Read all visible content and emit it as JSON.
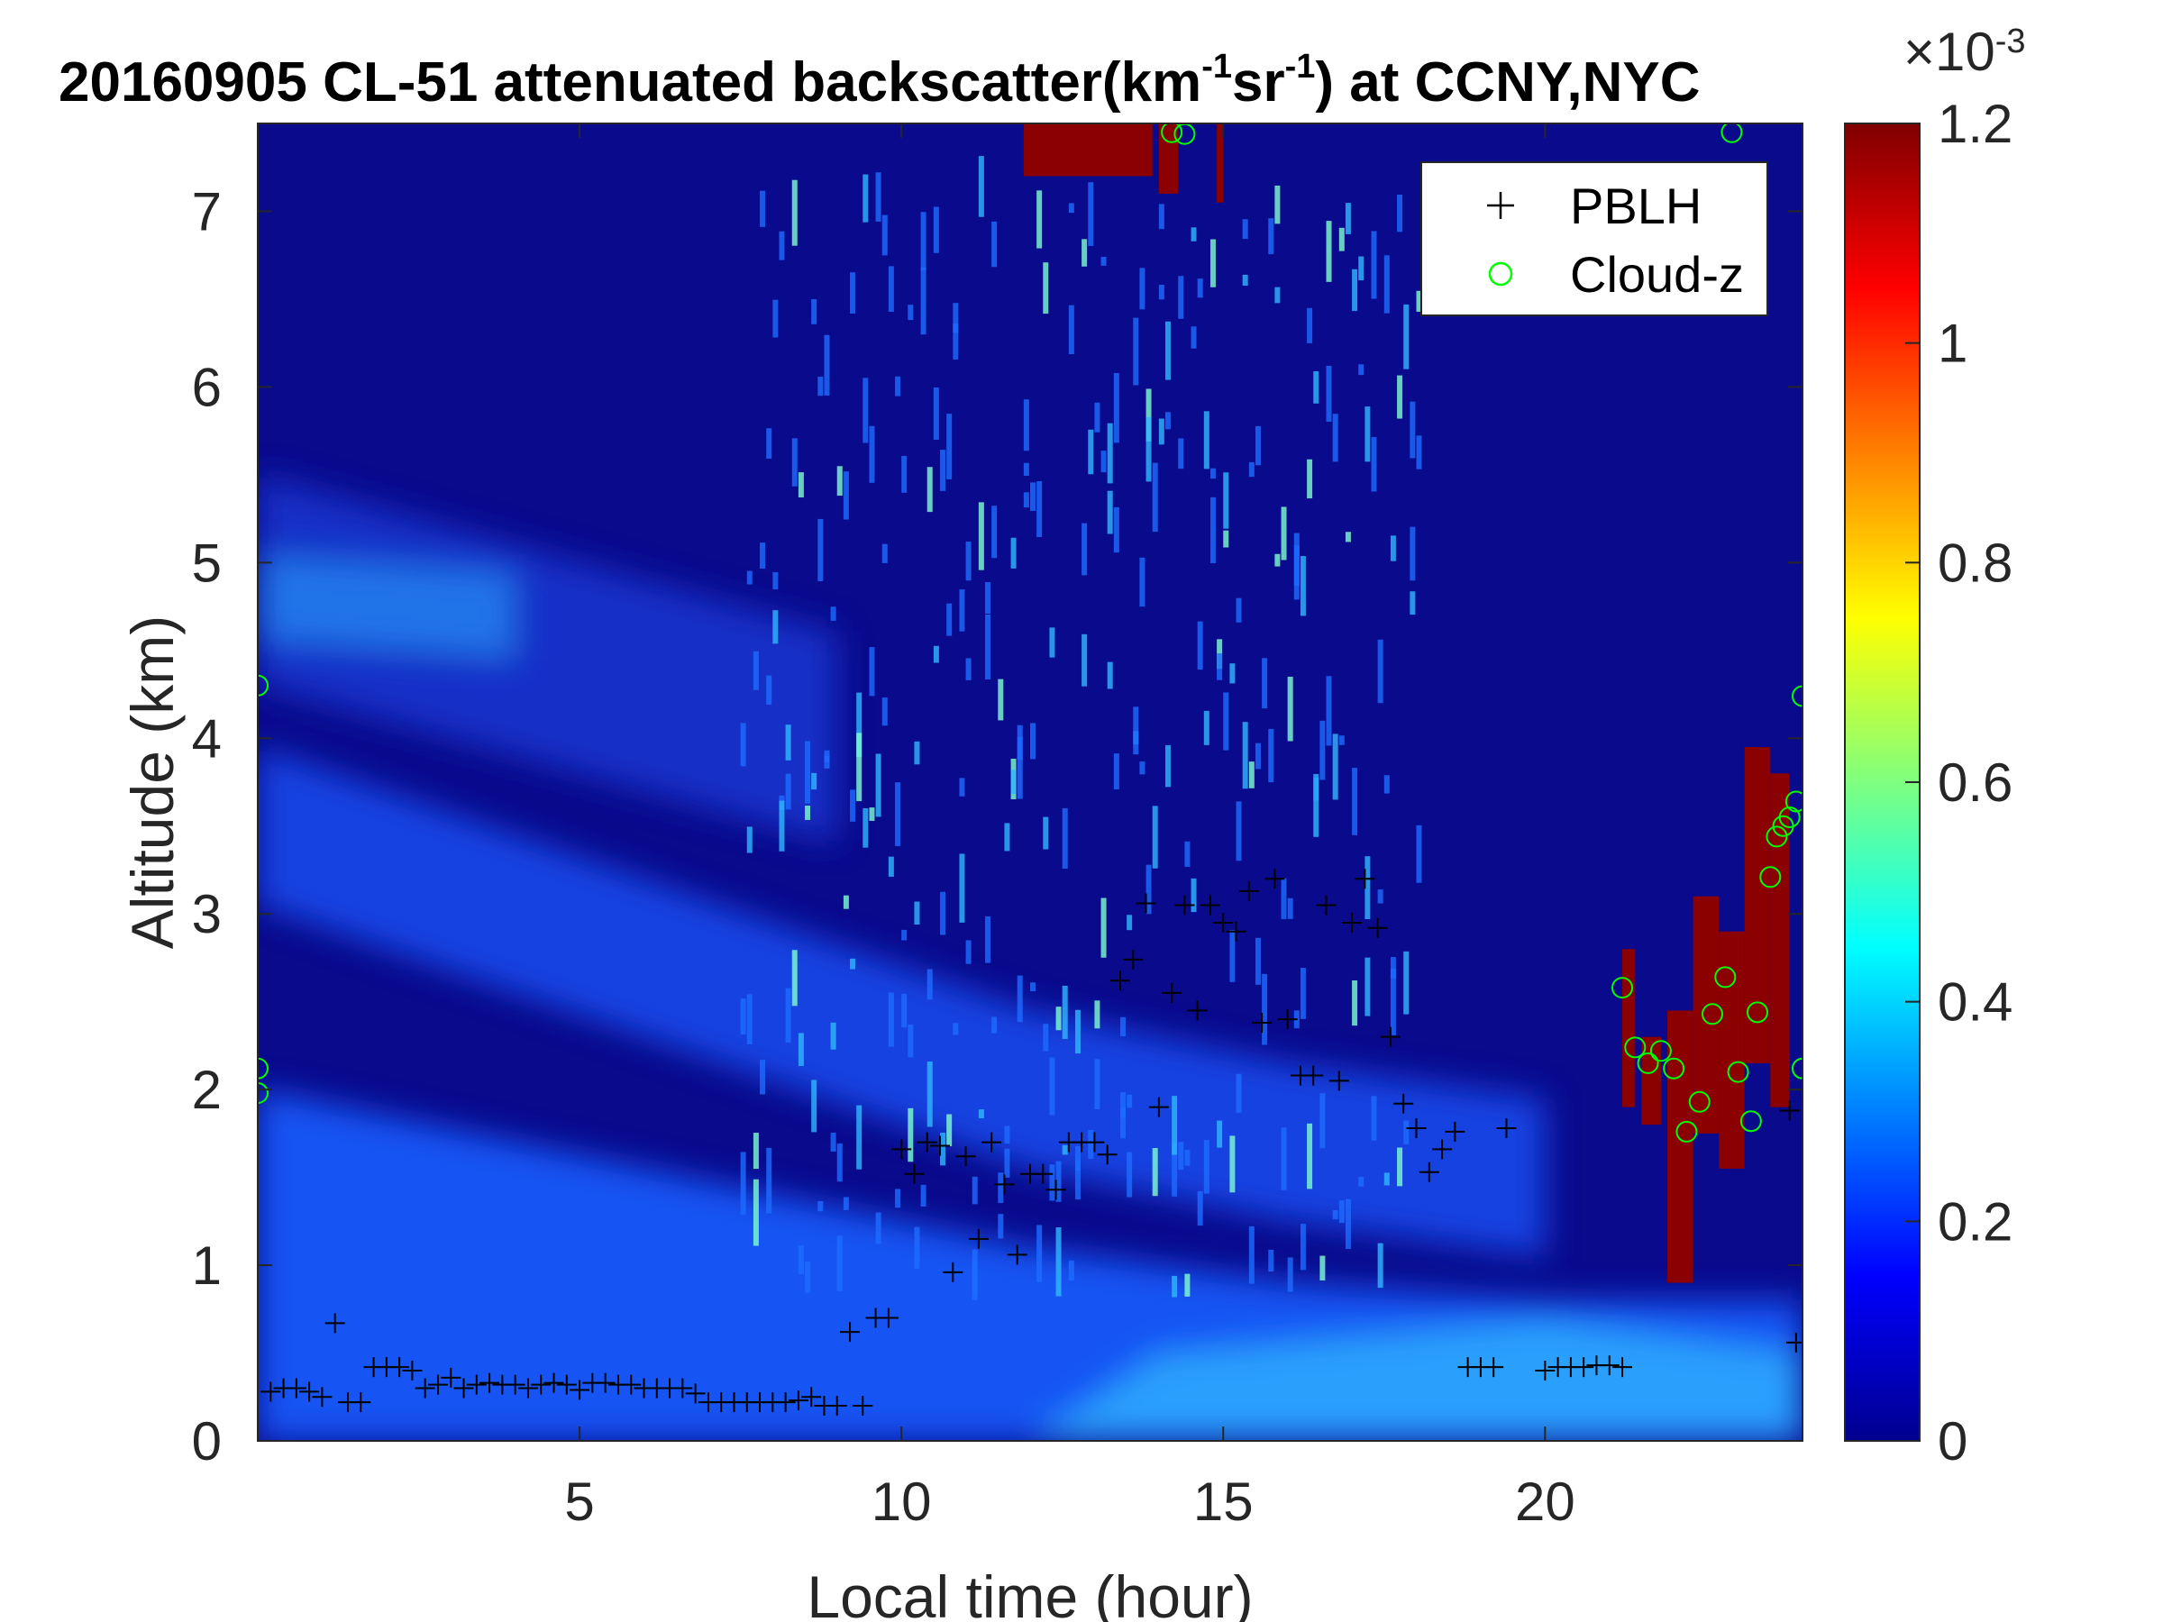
{
  "chart_data": {
    "type": "heatmap",
    "title": {
      "prefix": "20160905  CL-51 attenuated backscatter(km",
      "sup1": "-1",
      "mid": "sr",
      "sup2": "-1",
      "suffix": ") at CCNY,NYC"
    },
    "xlabel": "Local time (hour)",
    "ylabel": "Altitude (km)",
    "xlim": [
      0,
      24
    ],
    "ylim": [
      0,
      7.5
    ],
    "xticks": [
      5,
      10,
      15,
      20
    ],
    "yticks": [
      0,
      1,
      2,
      3,
      4,
      5,
      6,
      7
    ],
    "colorbar": {
      "colormap": "jet",
      "clim": [
        0,
        0.0012
      ],
      "ticks": [
        "0",
        "0.2",
        "0.4",
        "0.6",
        "0.8",
        "1",
        "1.2"
      ],
      "tick_values": [
        0,
        0.2,
        0.4,
        0.6,
        0.8,
        1.0,
        1.2
      ],
      "exponent_base": "×10",
      "exponent": "-3"
    },
    "legend": {
      "position": "top-right",
      "entries": [
        {
          "label": "PBLH",
          "marker": "+",
          "color": "#000000"
        },
        {
          "label": "Cloud-z",
          "marker": "o",
          "color": "#00ff00"
        }
      ]
    },
    "layers": [
      {
        "description": "low aerosol layer top",
        "x": [
          0,
          4,
          8,
          12,
          16,
          20,
          24
        ],
        "y": [
          2.0,
          1.7,
          1.4,
          1.1,
          0.9,
          0.8,
          0.8
        ]
      },
      {
        "description": "elevated layer",
        "x": [
          0,
          4,
          8,
          12,
          16,
          20
        ],
        "y": [
          3.5,
          3.0,
          2.5,
          2.0,
          1.7,
          1.5
        ]
      }
    ],
    "series": [
      {
        "name": "PBLH",
        "points": [
          [
            0.2,
            0.28
          ],
          [
            0.4,
            0.3
          ],
          [
            0.6,
            0.3
          ],
          [
            0.8,
            0.28
          ],
          [
            1.0,
            0.25
          ],
          [
            1.2,
            0.67
          ],
          [
            1.4,
            0.22
          ],
          [
            1.6,
            0.22
          ],
          [
            1.8,
            0.42
          ],
          [
            2.0,
            0.42
          ],
          [
            2.2,
            0.42
          ],
          [
            2.4,
            0.4
          ],
          [
            2.6,
            0.3
          ],
          [
            2.8,
            0.32
          ],
          [
            3.0,
            0.36
          ],
          [
            3.2,
            0.3
          ],
          [
            3.4,
            0.32
          ],
          [
            3.6,
            0.33
          ],
          [
            3.8,
            0.32
          ],
          [
            4.0,
            0.32
          ],
          [
            4.2,
            0.3
          ],
          [
            4.4,
            0.32
          ],
          [
            4.6,
            0.33
          ],
          [
            4.8,
            0.32
          ],
          [
            5.0,
            0.29
          ],
          [
            5.2,
            0.33
          ],
          [
            5.4,
            0.33
          ],
          [
            5.6,
            0.32
          ],
          [
            5.8,
            0.32
          ],
          [
            6.0,
            0.3
          ],
          [
            6.2,
            0.3
          ],
          [
            6.4,
            0.3
          ],
          [
            6.6,
            0.3
          ],
          [
            6.8,
            0.27
          ],
          [
            7.0,
            0.22
          ],
          [
            7.2,
            0.22
          ],
          [
            7.4,
            0.22
          ],
          [
            7.6,
            0.22
          ],
          [
            7.8,
            0.22
          ],
          [
            8.0,
            0.22
          ],
          [
            8.2,
            0.22
          ],
          [
            8.4,
            0.23
          ],
          [
            8.6,
            0.25
          ],
          [
            8.8,
            0.2
          ],
          [
            9.0,
            0.2
          ],
          [
            9.2,
            0.62
          ],
          [
            9.4,
            0.2
          ],
          [
            9.6,
            0.7
          ],
          [
            9.8,
            0.7
          ],
          [
            10.0,
            1.66
          ],
          [
            10.2,
            1.52
          ],
          [
            10.4,
            1.7
          ],
          [
            10.6,
            1.68
          ],
          [
            10.8,
            0.96
          ],
          [
            11.0,
            1.62
          ],
          [
            11.2,
            1.15
          ],
          [
            11.4,
            1.7
          ],
          [
            11.6,
            1.46
          ],
          [
            11.8,
            1.06
          ],
          [
            12.0,
            1.52
          ],
          [
            12.2,
            1.52
          ],
          [
            12.4,
            1.43
          ],
          [
            12.6,
            1.7
          ],
          [
            12.8,
            1.7
          ],
          [
            13.0,
            1.7
          ],
          [
            13.2,
            1.63
          ],
          [
            13.4,
            2.62
          ],
          [
            13.6,
            2.74
          ],
          [
            13.8,
            3.06
          ],
          [
            14.0,
            1.9
          ],
          [
            14.2,
            2.55
          ],
          [
            14.4,
            3.05
          ],
          [
            14.6,
            2.45
          ],
          [
            14.8,
            3.05
          ],
          [
            15.0,
            2.95
          ],
          [
            15.2,
            2.9
          ],
          [
            15.4,
            3.13
          ],
          [
            15.6,
            2.38
          ],
          [
            15.8,
            3.2
          ],
          [
            16.0,
            2.4
          ],
          [
            16.2,
            2.08
          ],
          [
            16.4,
            2.08
          ],
          [
            16.6,
            3.05
          ],
          [
            16.8,
            2.05
          ],
          [
            17.0,
            2.95
          ],
          [
            17.2,
            3.2
          ],
          [
            17.4,
            2.92
          ],
          [
            17.6,
            2.3
          ],
          [
            17.8,
            1.92
          ],
          [
            18.0,
            1.78
          ],
          [
            18.2,
            1.53
          ],
          [
            18.4,
            1.66
          ],
          [
            18.6,
            1.76
          ],
          [
            18.8,
            0.42
          ],
          [
            19.0,
            0.42
          ],
          [
            19.2,
            0.42
          ],
          [
            19.4,
            1.78
          ],
          [
            20.0,
            0.4
          ],
          [
            20.2,
            0.42
          ],
          [
            20.4,
            0.42
          ],
          [
            20.6,
            0.42
          ],
          [
            20.8,
            0.43
          ],
          [
            21.0,
            0.43
          ],
          [
            21.2,
            0.42
          ],
          [
            23.8,
            1.88
          ],
          [
            23.9,
            0.56
          ]
        ]
      },
      {
        "name": "Cloud-z",
        "points": [
          [
            0.0,
            4.3
          ],
          [
            0.0,
            2.12
          ],
          [
            0.0,
            1.98
          ],
          [
            14.2,
            7.45
          ],
          [
            14.4,
            7.44
          ],
          [
            21.2,
            2.58
          ],
          [
            21.4,
            2.24
          ],
          [
            21.6,
            2.15
          ],
          [
            21.8,
            2.22
          ],
          [
            22.0,
            2.12
          ],
          [
            22.2,
            1.76
          ],
          [
            22.4,
            1.93
          ],
          [
            22.6,
            2.43
          ],
          [
            22.8,
            2.64
          ],
          [
            23.0,
            2.1
          ],
          [
            23.2,
            1.82
          ],
          [
            23.3,
            2.44
          ],
          [
            23.5,
            3.21
          ],
          [
            23.6,
            3.44
          ],
          [
            23.7,
            3.5
          ],
          [
            23.8,
            3.55
          ],
          [
            23.9,
            3.64
          ],
          [
            24.0,
            4.24
          ],
          [
            24.0,
            2.12
          ],
          [
            22.9,
            7.45
          ]
        ]
      }
    ],
    "cloud_patches": [
      {
        "x": [
          11.9,
          13.9
        ],
        "y": [
          7.2,
          7.5
        ]
      },
      {
        "x": [
          14.0,
          14.3
        ],
        "y": [
          7.1,
          7.5
        ]
      },
      {
        "x": [
          14.9,
          15.0
        ],
        "y": [
          7.05,
          7.5
        ]
      },
      {
        "x": [
          21.2,
          21.4
        ],
        "y": [
          1.9,
          2.8
        ]
      },
      {
        "x": [
          21.5,
          21.8
        ],
        "y": [
          1.8,
          2.3
        ]
      },
      {
        "x": [
          21.9,
          22.3
        ],
        "y": [
          0.9,
          2.45
        ]
      },
      {
        "x": [
          22.3,
          22.7
        ],
        "y": [
          1.75,
          3.1
        ]
      },
      {
        "x": [
          22.7,
          23.1
        ],
        "y": [
          1.55,
          2.9
        ]
      },
      {
        "x": [
          23.1,
          23.5
        ],
        "y": [
          2.15,
          3.95
        ]
      },
      {
        "x": [
          23.5,
          23.8
        ],
        "y": [
          1.9,
          3.8
        ]
      }
    ]
  }
}
